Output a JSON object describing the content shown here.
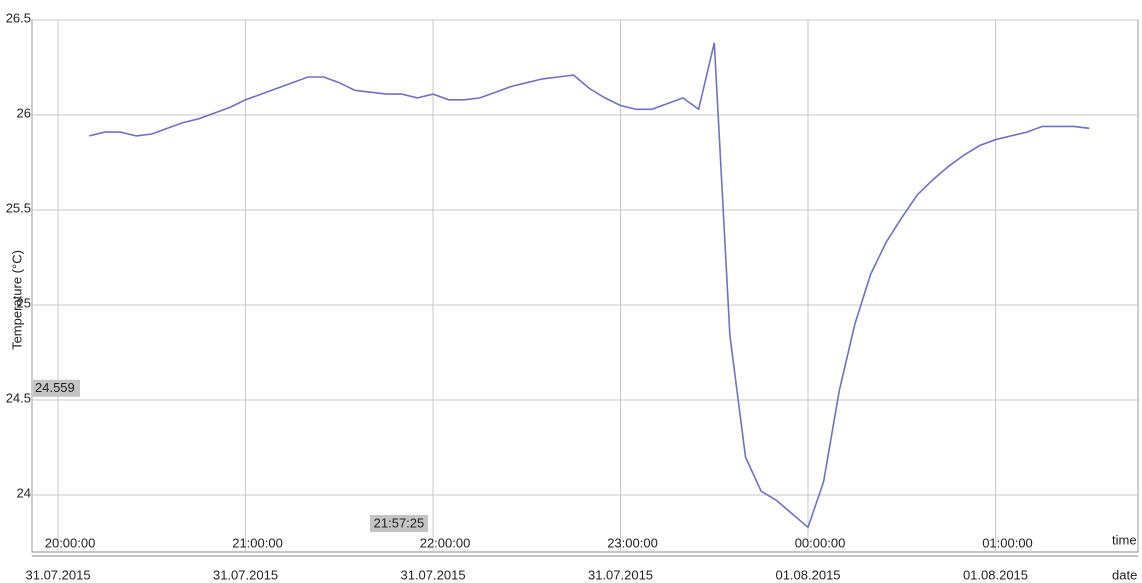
{
  "chart_data": {
    "type": "line",
    "ylabel": "Temperature (°C)",
    "xlabel_time": "time",
    "xlabel_date": "date",
    "x": [
      "20:10:00",
      "20:15:00",
      "20:20:00",
      "20:25:00",
      "20:30:00",
      "20:35:00",
      "20:40:00",
      "20:45:00",
      "20:50:00",
      "20:55:00",
      "21:00:00",
      "21:05:00",
      "21:10:00",
      "21:15:00",
      "21:20:00",
      "21:25:00",
      "21:30:00",
      "21:35:00",
      "21:40:00",
      "21:45:00",
      "21:50:00",
      "21:55:00",
      "22:00:00",
      "22:05:00",
      "22:10:00",
      "22:15:00",
      "22:20:00",
      "22:25:00",
      "22:30:00",
      "22:35:00",
      "22:40:00",
      "22:45:00",
      "22:50:00",
      "22:55:00",
      "23:00:00",
      "23:05:00",
      "23:10:00",
      "23:15:00",
      "23:20:00",
      "23:25:00",
      "23:30:00",
      "23:35:00",
      "23:40:00",
      "23:45:00",
      "23:50:00",
      "23:55:00",
      "00:00:00",
      "00:05:00",
      "00:10:00",
      "00:15:00",
      "00:20:00",
      "00:25:00",
      "00:30:00",
      "00:35:00",
      "00:40:00",
      "00:45:00",
      "00:50:00",
      "00:55:00",
      "01:00:00",
      "01:05:00",
      "01:10:00",
      "01:15:00",
      "01:20:00",
      "01:25:00",
      "01:30:00"
    ],
    "series": [
      {
        "name": "Temperature",
        "color": "#7070c4",
        "values": [
          25.89,
          25.91,
          25.91,
          25.89,
          25.9,
          25.93,
          25.96,
          25.98,
          26.01,
          26.04,
          26.08,
          26.11,
          26.14,
          26.17,
          26.2,
          26.2,
          26.17,
          26.13,
          26.12,
          26.11,
          26.11,
          26.09,
          26.11,
          26.08,
          26.08,
          26.09,
          26.12,
          26.15,
          26.17,
          26.19,
          26.2,
          26.21,
          26.14,
          26.09,
          26.05,
          26.03,
          26.03,
          26.06,
          26.09,
          26.03,
          26.38,
          24.84,
          24.2,
          24.02,
          23.97,
          23.9,
          23.83,
          24.07,
          24.55,
          24.9,
          25.16,
          25.33,
          25.46,
          25.58,
          25.66,
          25.73,
          25.79,
          25.84,
          25.87,
          25.89,
          25.91,
          25.94,
          25.94,
          25.94,
          25.93
        ]
      }
    ],
    "xlim": [
      "19:51:40",
      "01:45:36"
    ],
    "xticks": [
      "20:00:00",
      "21:00:00",
      "22:00:00",
      "23:00:00",
      "00:00:00",
      "01:00:00"
    ],
    "xtick_dates": [
      "31.07.2015",
      "31.07.2015",
      "31.07.2015",
      "31.07.2015",
      "01.08.2015",
      "01.08.2015"
    ],
    "ylim": [
      23.7,
      26.5
    ],
    "yticks": [
      {
        "value": 24,
        "label": "24"
      },
      24.5,
      25,
      25.5,
      26,
      26.5
    ],
    "grid": true,
    "cursor": {
      "y": 24.559,
      "x": "21:57:25"
    }
  }
}
